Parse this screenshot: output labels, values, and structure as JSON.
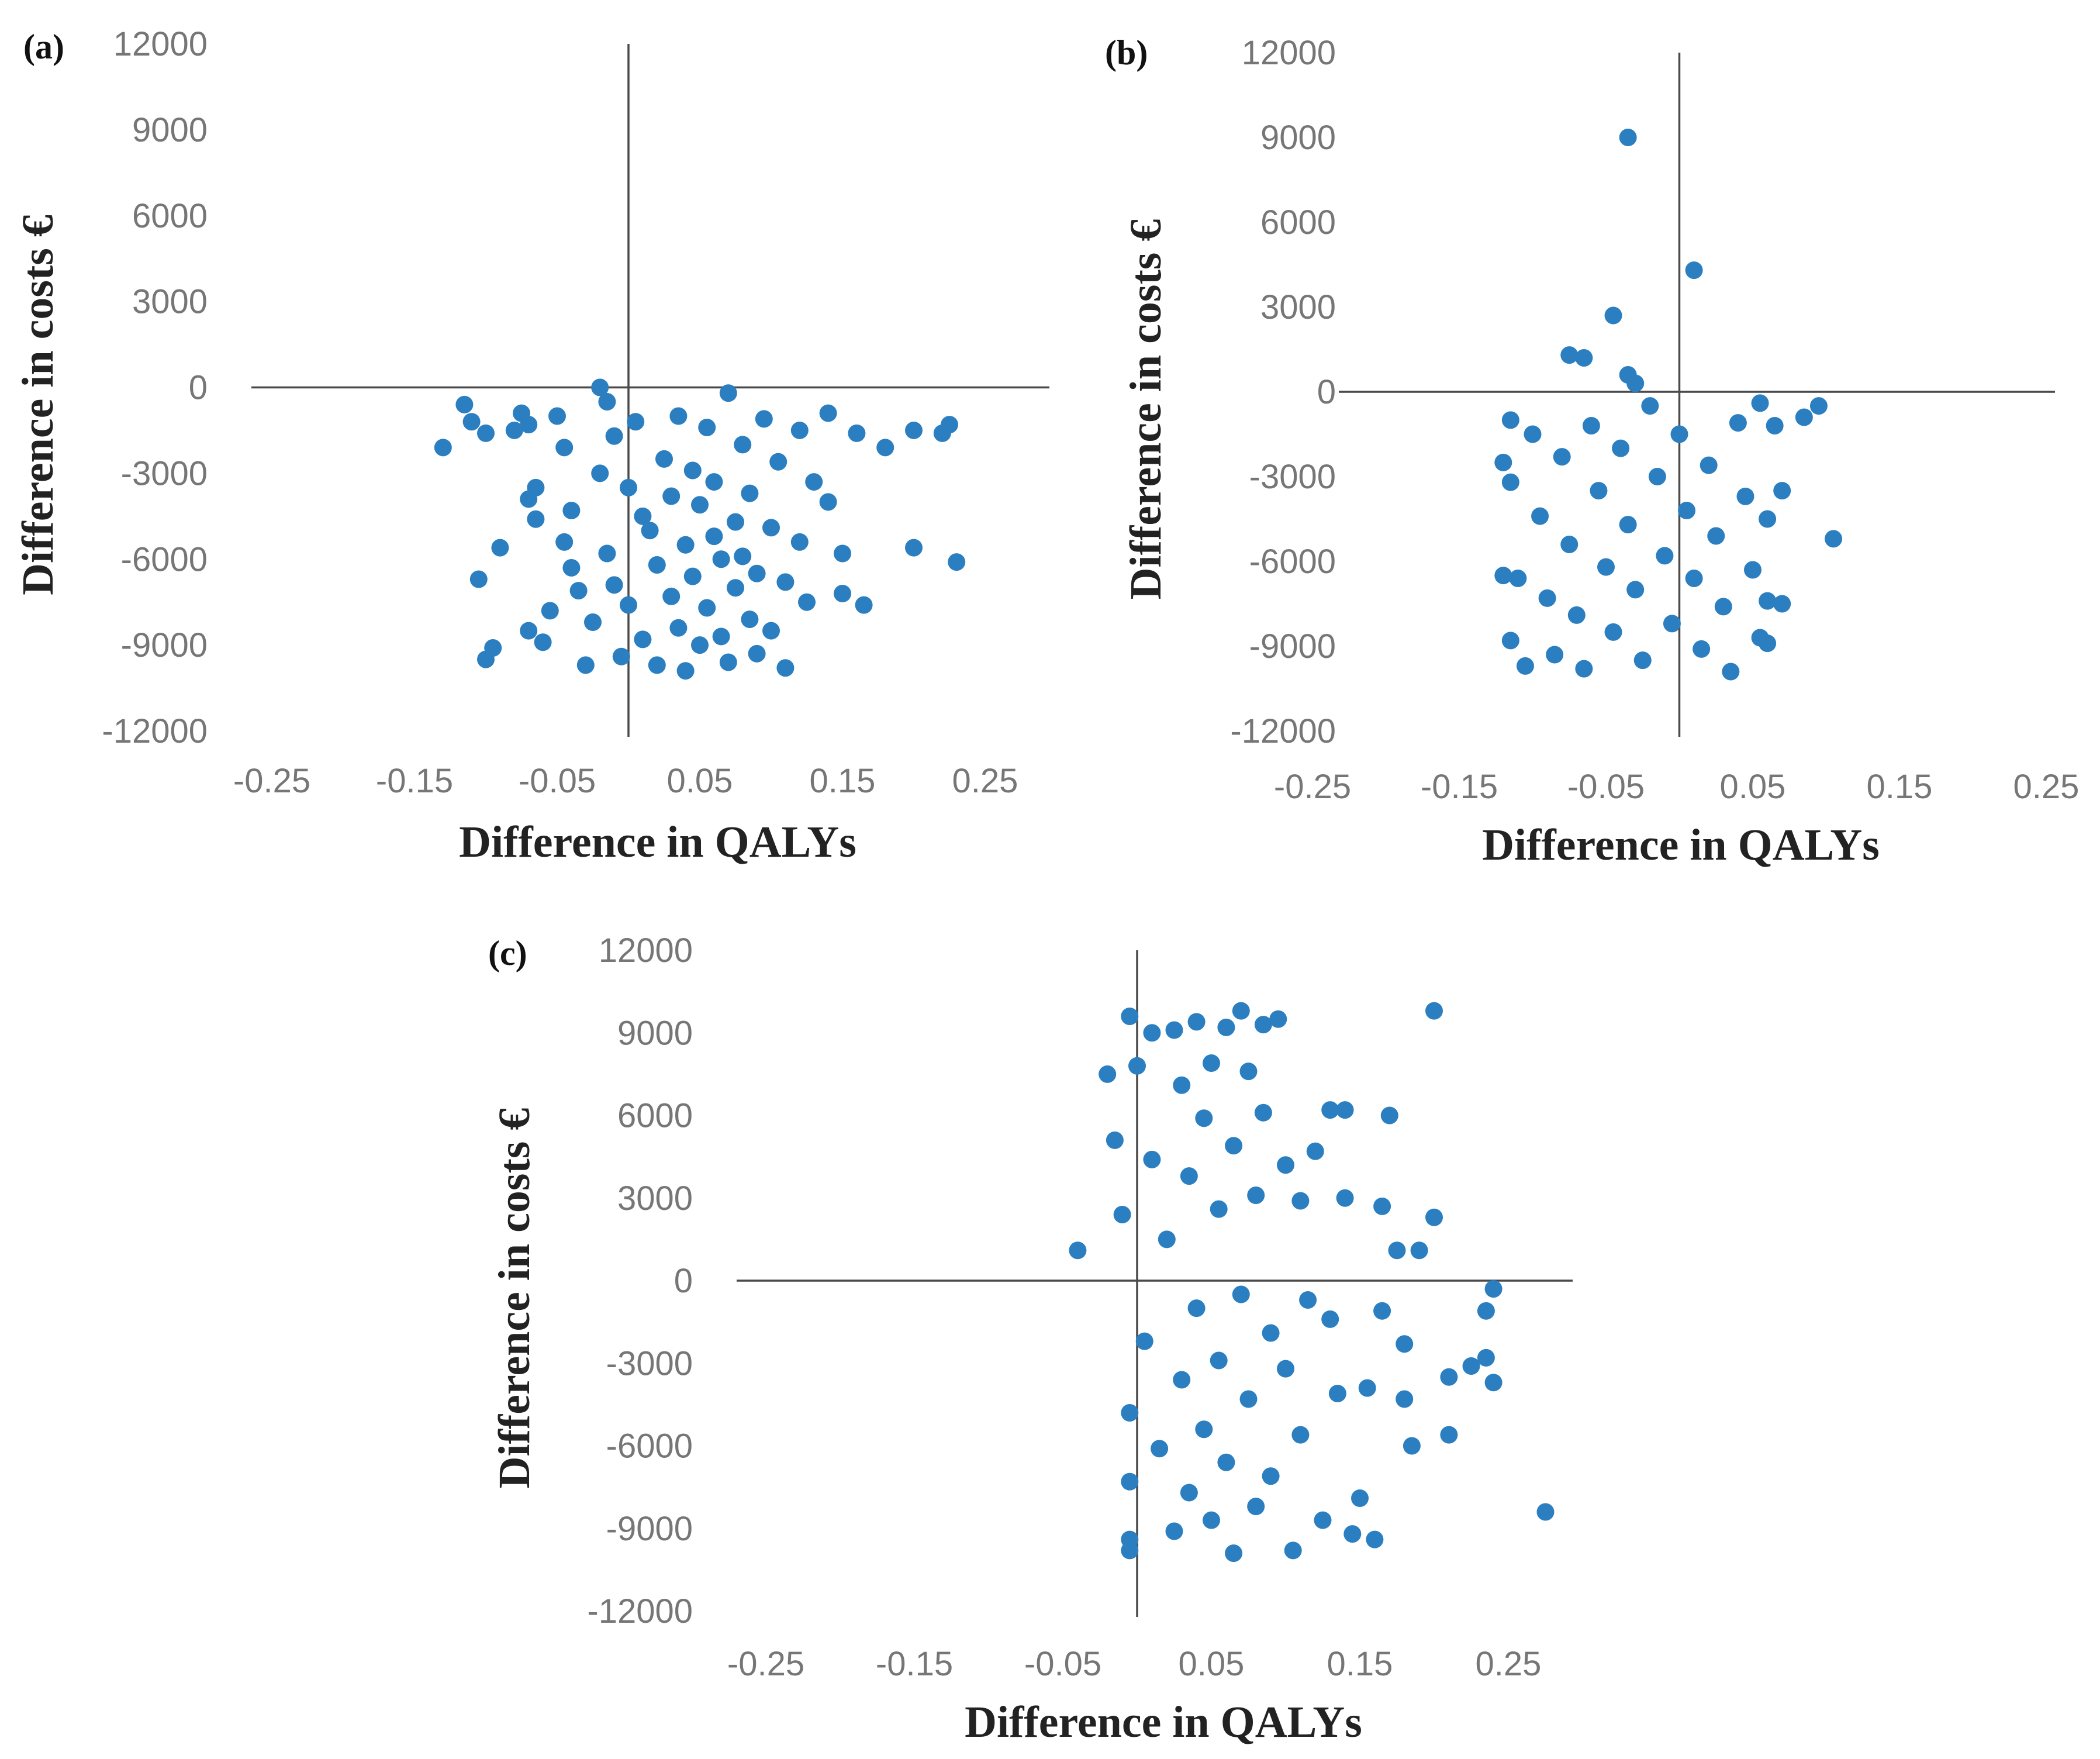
{
  "colors": {
    "point": "#2b7fc0",
    "axis": "#4a4a4a",
    "tick_text": "#767676"
  },
  "chart_data": [
    {
      "type": "scatter",
      "panel_label": "(a)",
      "xlabel": "Difference in QALYs",
      "ylabel": "Difference in costs €",
      "xlim": [
        -0.3,
        0.3
      ],
      "ylim": [
        -12000,
        12000
      ],
      "x_ticks": [
        "-0.25",
        "-0.15",
        "-0.05",
        "0.05",
        "0.15",
        "0.25"
      ],
      "y_ticks": [
        "12000",
        "9000",
        "6000",
        "3000",
        "0",
        "-3000",
        "-6000",
        "-9000",
        "-12000"
      ],
      "grid": false,
      "series": [
        {
          "points": [
            [
              -0.13,
              -2100
            ],
            [
              -0.115,
              -600
            ],
            [
              -0.11,
              -1200
            ],
            [
              -0.1,
              -1600
            ],
            [
              -0.105,
              -6700
            ],
            [
              -0.1,
              -9500
            ],
            [
              -0.095,
              -9100
            ],
            [
              -0.09,
              -5600
            ],
            [
              -0.08,
              -1500
            ],
            [
              -0.075,
              -900
            ],
            [
              -0.07,
              -1300
            ],
            [
              -0.065,
              -3500
            ],
            [
              -0.07,
              -3900
            ],
            [
              -0.065,
              -4600
            ],
            [
              -0.07,
              -8500
            ],
            [
              -0.06,
              -8900
            ],
            [
              -0.055,
              -7800
            ],
            [
              -0.05,
              -1000
            ],
            [
              -0.045,
              -2100
            ],
            [
              -0.04,
              -4300
            ],
            [
              -0.045,
              -5400
            ],
            [
              -0.04,
              -6300
            ],
            [
              -0.035,
              -7100
            ],
            [
              -0.03,
              -9700
            ],
            [
              -0.025,
              -8200
            ],
            [
              -0.02,
              0
            ],
            [
              -0.015,
              -500
            ],
            [
              -0.01,
              -1700
            ],
            [
              -0.02,
              -3000
            ],
            [
              -0.015,
              -5800
            ],
            [
              -0.01,
              -6900
            ],
            [
              -0.005,
              -9400
            ],
            [
              0.0,
              -7600
            ],
            [
              0.0,
              -3500
            ],
            [
              0.005,
              -1200
            ],
            [
              0.01,
              -4500
            ],
            [
              0.01,
              -8800
            ],
            [
              0.015,
              -5000
            ],
            [
              0.02,
              -6200
            ],
            [
              0.02,
              -9700
            ],
            [
              0.025,
              -2500
            ],
            [
              0.03,
              -3800
            ],
            [
              0.03,
              -7300
            ],
            [
              0.035,
              -1000
            ],
            [
              0.035,
              -8400
            ],
            [
              0.04,
              -5500
            ],
            [
              0.04,
              -9900
            ],
            [
              0.045,
              -2900
            ],
            [
              0.045,
              -6600
            ],
            [
              0.05,
              -4100
            ],
            [
              0.05,
              -9000
            ],
            [
              0.055,
              -7700
            ],
            [
              0.055,
              -1400
            ],
            [
              0.06,
              -5200
            ],
            [
              0.06,
              -3300
            ],
            [
              0.065,
              -6000
            ],
            [
              0.065,
              -8700
            ],
            [
              0.07,
              -200
            ],
            [
              0.07,
              -9600
            ],
            [
              0.075,
              -4700
            ],
            [
              0.075,
              -7000
            ],
            [
              0.08,
              -2000
            ],
            [
              0.08,
              -5900
            ],
            [
              0.085,
              -8100
            ],
            [
              0.085,
              -3700
            ],
            [
              0.09,
              -6500
            ],
            [
              0.09,
              -9300
            ],
            [
              0.095,
              -1100
            ],
            [
              0.1,
              -4900
            ],
            [
              0.1,
              -8500
            ],
            [
              0.105,
              -2600
            ],
            [
              0.11,
              -6800
            ],
            [
              0.11,
              -9800
            ],
            [
              0.12,
              -1500
            ],
            [
              0.12,
              -5400
            ],
            [
              0.125,
              -7500
            ],
            [
              0.13,
              -3300
            ],
            [
              0.14,
              -900
            ],
            [
              0.14,
              -4000
            ],
            [
              0.15,
              -5800
            ],
            [
              0.15,
              -7200
            ],
            [
              0.16,
              -1600
            ],
            [
              0.165,
              -7600
            ],
            [
              0.18,
              -2100
            ],
            [
              0.2,
              -1500
            ],
            [
              0.2,
              -5600
            ],
            [
              0.22,
              -1600
            ],
            [
              0.225,
              -1300
            ],
            [
              0.23,
              -6100
            ]
          ]
        }
      ]
    },
    {
      "type": "scatter",
      "panel_label": "(b)",
      "xlabel": "Difference in QALYs",
      "ylabel": "Difference in costs €",
      "xlim": [
        -0.3,
        0.3
      ],
      "ylim": [
        -12000,
        12000
      ],
      "x_ticks": [
        "-0.25",
        "-0.15",
        "-0.05",
        "0.05",
        "0.15",
        "0.25"
      ],
      "y_ticks": [
        "12000",
        "9000",
        "6000",
        "3000",
        "0",
        "-3000",
        "-6000",
        "-9000",
        "-12000"
      ],
      "grid": false,
      "series": [
        {
          "points": [
            [
              -0.035,
              9000
            ],
            [
              0.01,
              4300
            ],
            [
              -0.045,
              2700
            ],
            [
              -0.075,
              1300
            ],
            [
              -0.065,
              1200
            ],
            [
              -0.035,
              600
            ],
            [
              -0.03,
              300
            ],
            [
              -0.115,
              -1000
            ],
            [
              -0.12,
              -2500
            ],
            [
              -0.115,
              -3200
            ],
            [
              -0.12,
              -6500
            ],
            [
              -0.11,
              -6600
            ],
            [
              -0.115,
              -8800
            ],
            [
              -0.105,
              -9700
            ],
            [
              -0.1,
              -1500
            ],
            [
              -0.095,
              -4400
            ],
            [
              -0.09,
              -7300
            ],
            [
              -0.085,
              -9300
            ],
            [
              -0.08,
              -2300
            ],
            [
              -0.075,
              -5400
            ],
            [
              -0.07,
              -7900
            ],
            [
              -0.065,
              -9800
            ],
            [
              -0.06,
              -1200
            ],
            [
              -0.055,
              -3500
            ],
            [
              -0.05,
              -6200
            ],
            [
              -0.045,
              -8500
            ],
            [
              -0.04,
              -2000
            ],
            [
              -0.035,
              -4700
            ],
            [
              -0.03,
              -7000
            ],
            [
              -0.025,
              -9500
            ],
            [
              -0.02,
              -500
            ],
            [
              -0.015,
              -3000
            ],
            [
              -0.01,
              -5800
            ],
            [
              -0.005,
              -8200
            ],
            [
              0.0,
              -1500
            ],
            [
              0.005,
              -4200
            ],
            [
              0.01,
              -6600
            ],
            [
              0.015,
              -9100
            ],
            [
              0.02,
              -2600
            ],
            [
              0.025,
              -5100
            ],
            [
              0.03,
              -7600
            ],
            [
              0.035,
              -9900
            ],
            [
              0.04,
              -1100
            ],
            [
              0.045,
              -3700
            ],
            [
              0.05,
              -6300
            ],
            [
              0.055,
              -8700
            ],
            [
              0.055,
              -400
            ],
            [
              0.06,
              -4500
            ],
            [
              0.06,
              -7400
            ],
            [
              0.06,
              -8900
            ],
            [
              0.065,
              -1200
            ],
            [
              0.07,
              -7500
            ],
            [
              0.07,
              -3500
            ],
            [
              0.085,
              -900
            ],
            [
              0.095,
              -500
            ],
            [
              0.105,
              -5200
            ]
          ]
        }
      ]
    },
    {
      "type": "scatter",
      "panel_label": "(c)",
      "xlabel": "Difference in QALYs",
      "ylabel": "Difference in costs €",
      "xlim": [
        -0.3,
        0.3
      ],
      "ylim": [
        -12000,
        12000
      ],
      "x_ticks": [
        "-0.25",
        "-0.15",
        "-0.05",
        "0.05",
        "0.15",
        "0.25"
      ],
      "y_ticks": [
        "12000",
        "9000",
        "6000",
        "3000",
        "0",
        "-3000",
        "-6000",
        "-9000",
        "-12000"
      ],
      "grid": false,
      "series": [
        {
          "points": [
            [
              -0.04,
              1100
            ],
            [
              -0.02,
              7500
            ],
            [
              -0.015,
              5100
            ],
            [
              -0.01,
              2400
            ],
            [
              -0.005,
              9600
            ],
            [
              -0.005,
              -4800
            ],
            [
              -0.005,
              -7300
            ],
            [
              -0.005,
              -9400
            ],
            [
              -0.005,
              -9800
            ],
            [
              0.0,
              7800
            ],
            [
              0.005,
              -2200
            ],
            [
              0.01,
              4400
            ],
            [
              0.01,
              9000
            ],
            [
              0.015,
              -6100
            ],
            [
              0.02,
              1500
            ],
            [
              0.025,
              9100
            ],
            [
              0.025,
              -9100
            ],
            [
              0.03,
              7100
            ],
            [
              0.03,
              -3600
            ],
            [
              0.035,
              3800
            ],
            [
              0.035,
              -7700
            ],
            [
              0.04,
              9400
            ],
            [
              0.04,
              -1000
            ],
            [
              0.045,
              5900
            ],
            [
              0.045,
              -5400
            ],
            [
              0.05,
              7900
            ],
            [
              0.05,
              -8700
            ],
            [
              0.055,
              2600
            ],
            [
              0.055,
              -2900
            ],
            [
              0.06,
              9200
            ],
            [
              0.06,
              -6600
            ],
            [
              0.065,
              4900
            ],
            [
              0.065,
              -9900
            ],
            [
              0.07,
              9800
            ],
            [
              0.07,
              -500
            ],
            [
              0.075,
              7600
            ],
            [
              0.075,
              -4300
            ],
            [
              0.08,
              3100
            ],
            [
              0.08,
              -8200
            ],
            [
              0.085,
              9300
            ],
            [
              0.085,
              6100
            ],
            [
              0.09,
              -1900
            ],
            [
              0.09,
              -7100
            ],
            [
              0.095,
              9500
            ],
            [
              0.1,
              4200
            ],
            [
              0.1,
              -3200
            ],
            [
              0.105,
              -9800
            ],
            [
              0.11,
              2900
            ],
            [
              0.11,
              -5600
            ],
            [
              0.115,
              -700
            ],
            [
              0.12,
              4700
            ],
            [
              0.125,
              -8700
            ],
            [
              0.13,
              6200
            ],
            [
              0.13,
              -1400
            ],
            [
              0.135,
              -4100
            ],
            [
              0.14,
              6200
            ],
            [
              0.14,
              3000
            ],
            [
              0.145,
              -9200
            ],
            [
              0.15,
              -7900
            ],
            [
              0.155,
              -3900
            ],
            [
              0.16,
              -9400
            ],
            [
              0.165,
              -1100
            ],
            [
              0.165,
              2700
            ],
            [
              0.17,
              6000
            ],
            [
              0.175,
              1100
            ],
            [
              0.18,
              -2300
            ],
            [
              0.18,
              -4300
            ],
            [
              0.185,
              -6000
            ],
            [
              0.19,
              1100
            ],
            [
              0.2,
              9800
            ],
            [
              0.2,
              2300
            ],
            [
              0.21,
              -5600
            ],
            [
              0.21,
              -3500
            ],
            [
              0.225,
              -3100
            ],
            [
              0.235,
              -2800
            ],
            [
              0.235,
              -1100
            ],
            [
              0.24,
              -300
            ],
            [
              0.24,
              -3700
            ],
            [
              0.275,
              -8400
            ]
          ]
        }
      ]
    }
  ]
}
